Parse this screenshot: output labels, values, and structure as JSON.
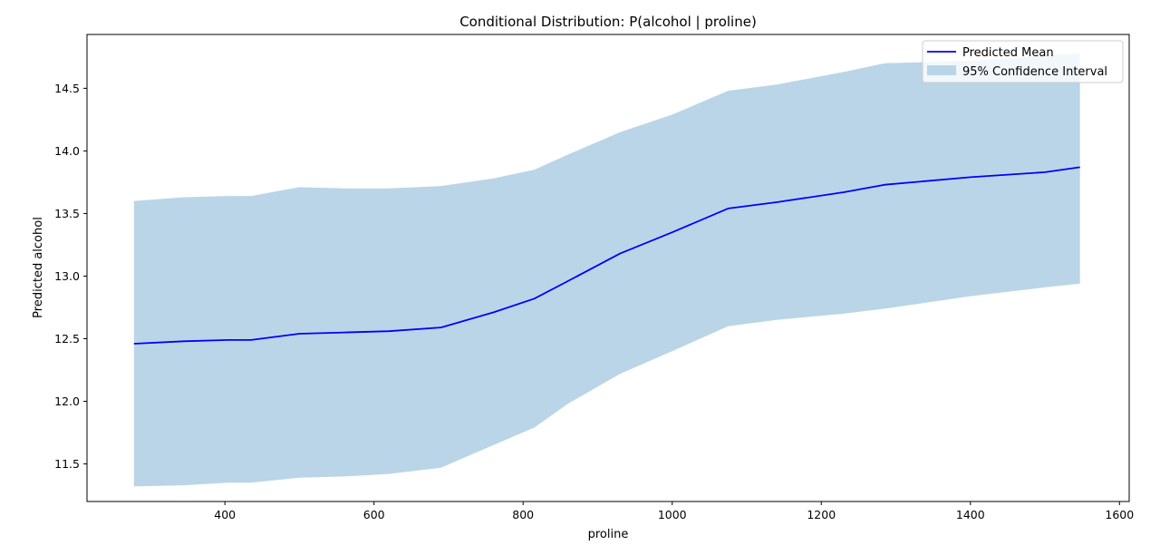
{
  "chart_data": {
    "type": "line",
    "title": "Conditional Distribution: P(alcohol | proline)",
    "xlabel": "proline",
    "ylabel": "Predicted alcohol",
    "xlim": [
      215,
      1613
    ],
    "ylim": [
      11.2,
      14.93
    ],
    "xticks": [
      400,
      600,
      800,
      1000,
      1200,
      1400,
      1600
    ],
    "yticks": [
      11.5,
      12.0,
      12.5,
      13.0,
      13.5,
      14.0,
      14.5
    ],
    "x": [
      278,
      345,
      405,
      435,
      500,
      560,
      620,
      690,
      760,
      815,
      860,
      930,
      1000,
      1075,
      1140,
      1230,
      1285,
      1400,
      1500,
      1547
    ],
    "series": [
      {
        "name": "Predicted Mean",
        "kind": "line",
        "color": "#0000ff",
        "values": [
          12.46,
          12.48,
          12.49,
          12.49,
          12.54,
          12.55,
          12.56,
          12.59,
          12.71,
          12.82,
          12.96,
          13.18,
          13.35,
          13.54,
          13.59,
          13.67,
          13.73,
          13.79,
          13.83,
          13.87
        ]
      },
      {
        "name": "95% Confidence Interval",
        "kind": "band",
        "color": "#bad5e8",
        "lower": [
          11.32,
          11.33,
          11.35,
          11.35,
          11.39,
          11.4,
          11.42,
          11.47,
          11.65,
          11.79,
          11.98,
          12.22,
          12.4,
          12.6,
          12.65,
          12.7,
          12.74,
          12.84,
          12.91,
          12.94
        ],
        "upper": [
          13.6,
          13.63,
          13.64,
          13.64,
          13.71,
          13.7,
          13.7,
          13.72,
          13.78,
          13.85,
          13.97,
          14.15,
          14.29,
          14.48,
          14.53,
          14.63,
          14.7,
          14.72,
          14.76,
          14.78
        ]
      }
    ],
    "legend_position": "top-right",
    "grid": false
  },
  "colors": {
    "mean_line": "#0000ff",
    "band": "#bad5e8",
    "axes": "#000000"
  }
}
